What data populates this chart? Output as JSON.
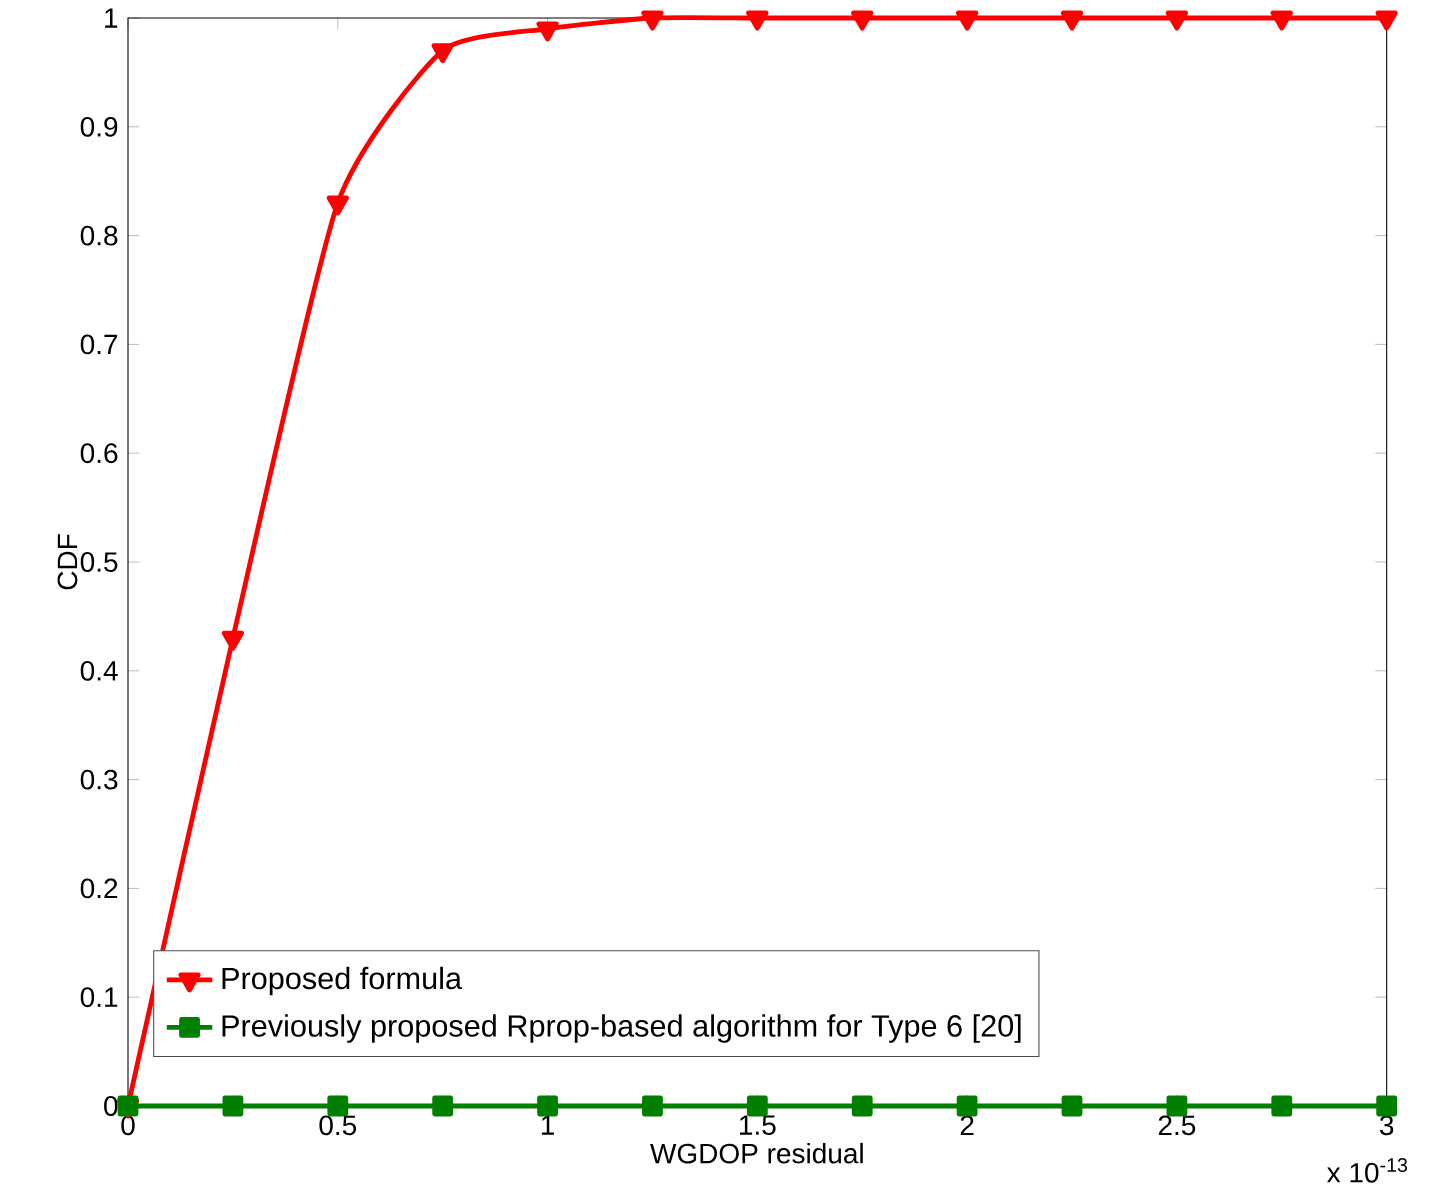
{
  "chart_data": {
    "type": "line",
    "xlabel": "WGDOP residual",
    "ylabel": "CDF",
    "annotations": [
      "x 10$^{-13}$"
    ],
    "x": [
      0,
      0.25,
      0.5,
      0.75,
      1,
      1.25,
      1.5,
      1.75,
      2,
      2.25,
      2.5,
      2.75,
      3
    ],
    "series": [
      {
        "name": "Proposed formula",
        "color": "#ff0000",
        "marker": "triangle",
        "values": [
          0,
          0.43,
          0.83,
          0.97,
          0.99,
          1,
          1,
          1,
          1,
          1,
          1,
          1,
          1
        ]
      },
      {
        "name": "Previously proposed Rprop-based algorithm for Type 6 [20]",
        "color": "#007f00",
        "marker": "square",
        "values": [
          0,
          0,
          0,
          0,
          0,
          0,
          0,
          0,
          0,
          0,
          0,
          0,
          0
        ]
      }
    ],
    "xlim": [
      0,
      3
    ],
    "ylim": [
      0,
      1
    ],
    "xticks": [
      0,
      0.5,
      1,
      1.5,
      2,
      2.5,
      3
    ],
    "yticks": [
      0,
      0.1,
      0.2,
      0.3,
      0.4,
      0.5,
      0.6,
      0.7,
      0.8,
      0.9,
      1
    ],
    "legend": "bottom left",
    "line_style": "solid"
  }
}
